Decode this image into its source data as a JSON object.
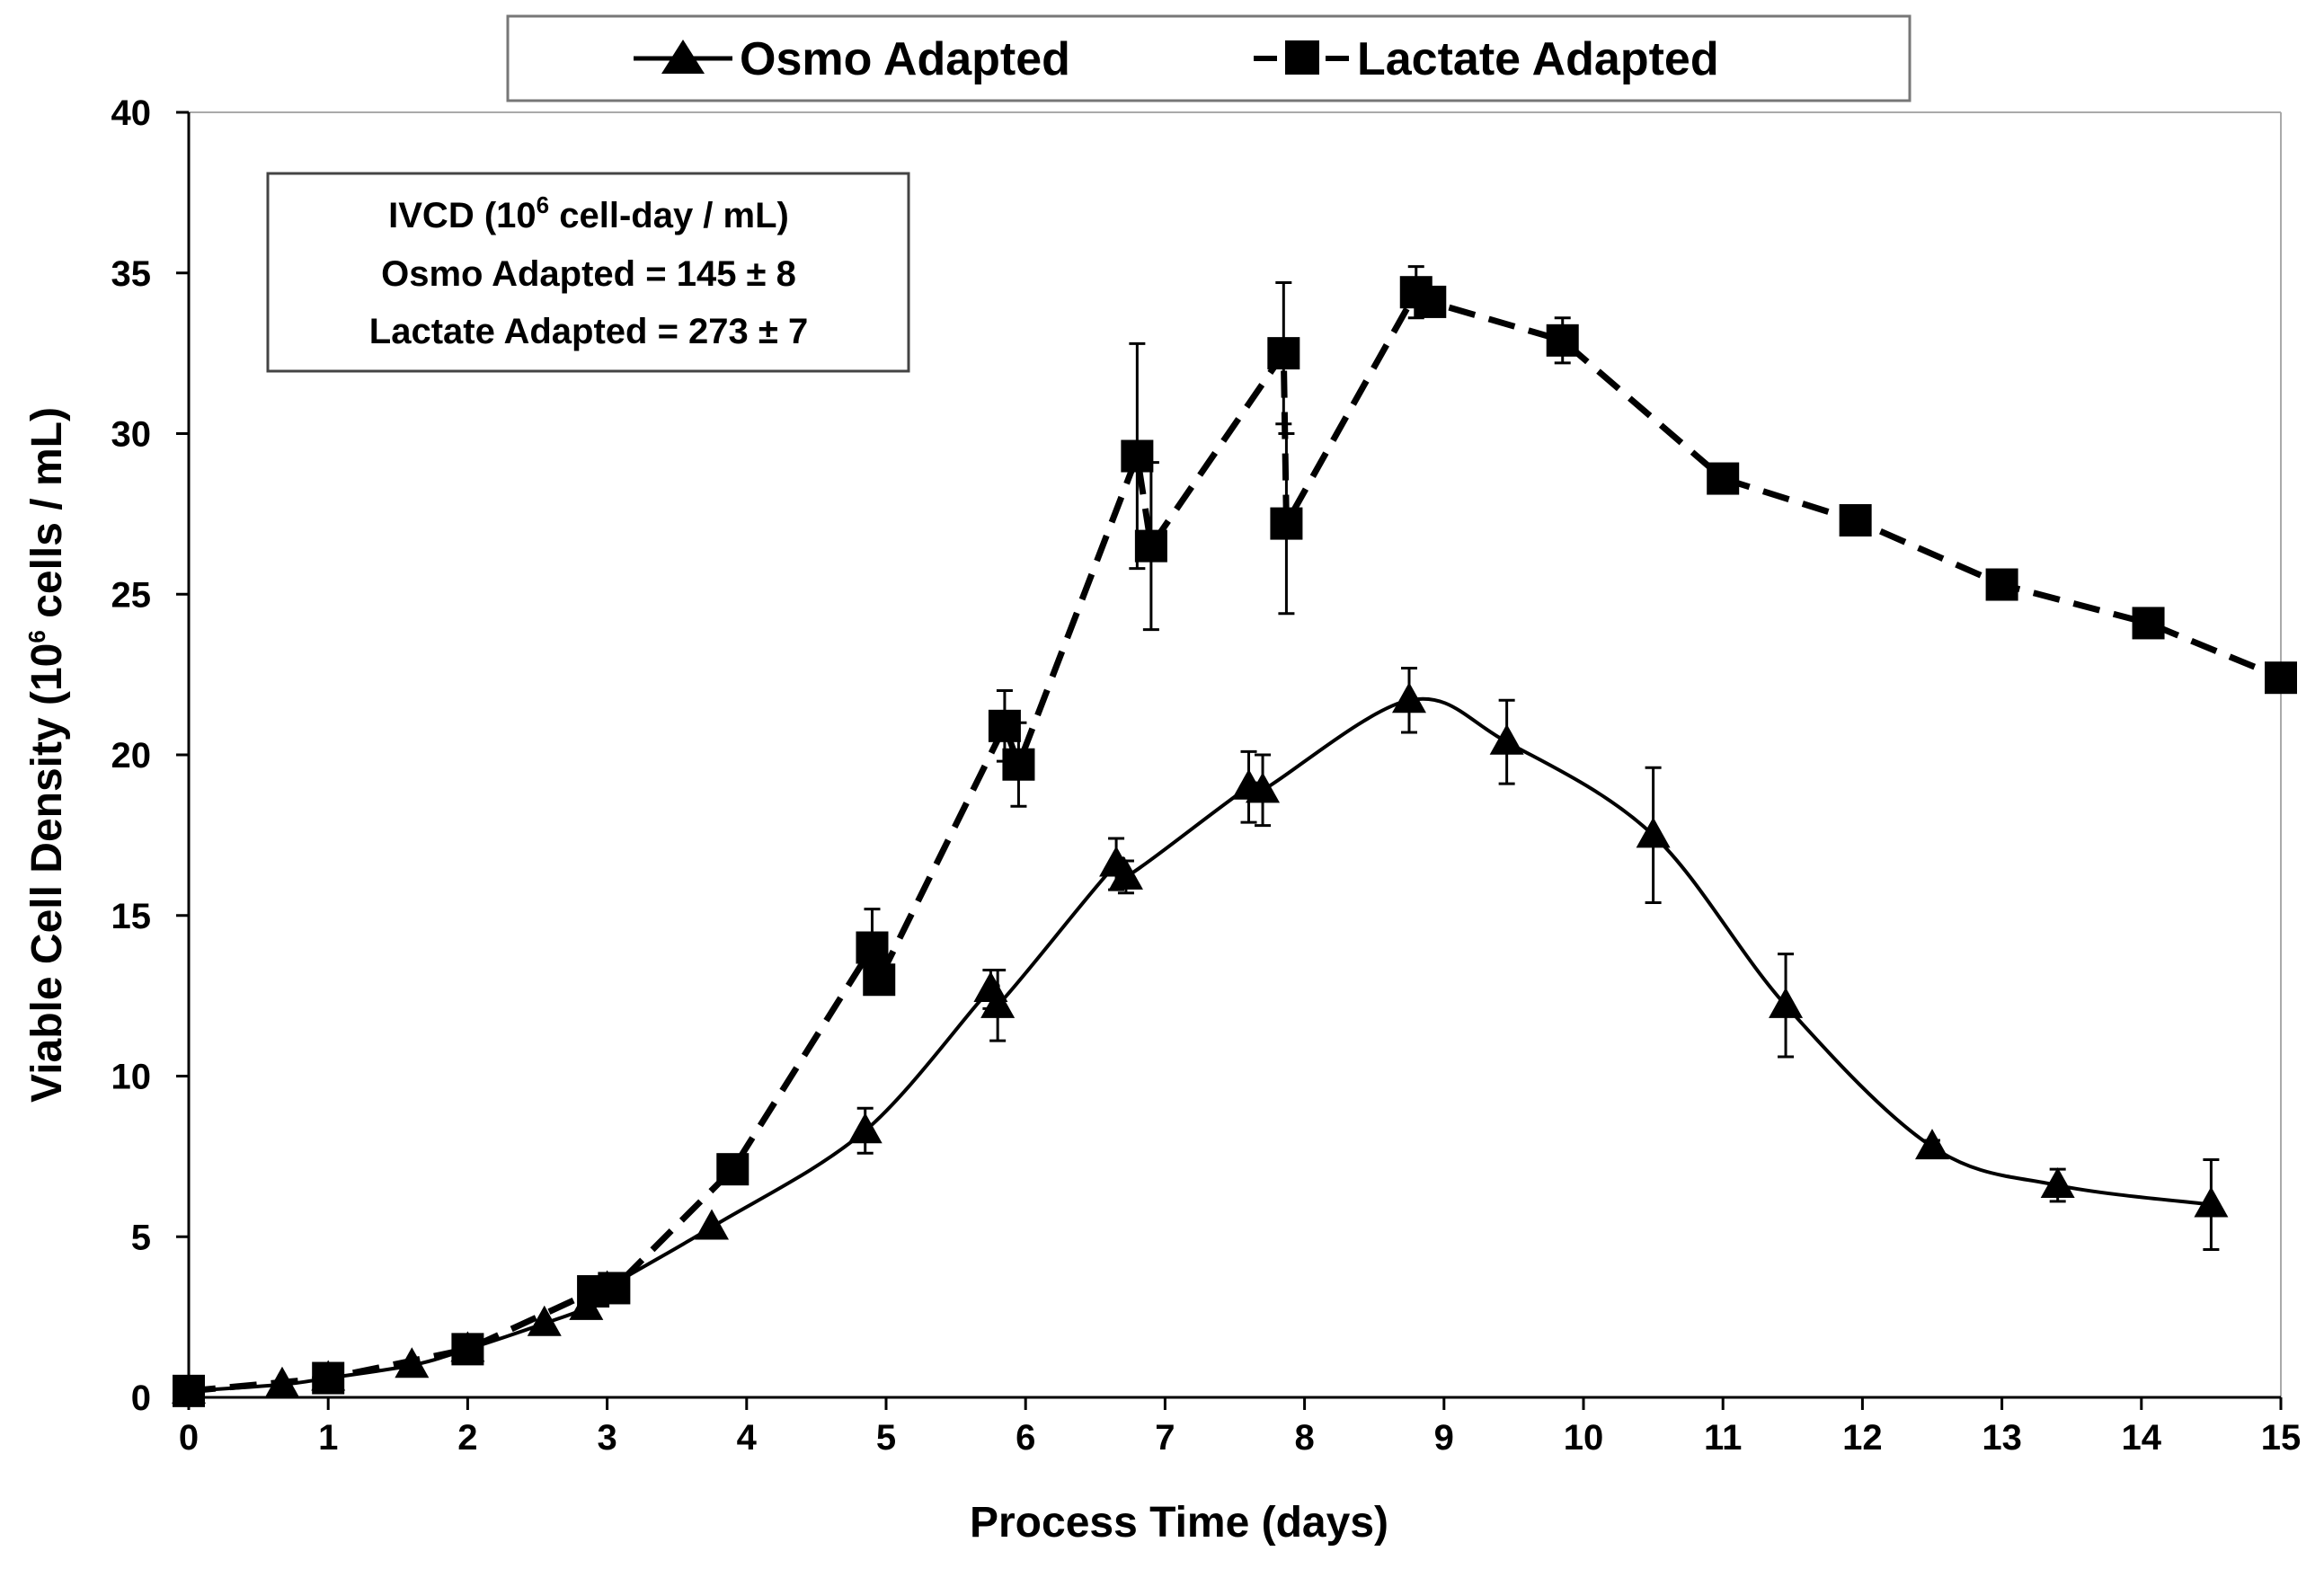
{
  "chart_data": {
    "type": "line",
    "xlabel": "Process Time (days)",
    "ylabel_main": "Viable Cell Density (10",
    "ylabel_sup": "6",
    "ylabel_tail": " cells / mL)",
    "xlim": [
      0,
      15
    ],
    "ylim": [
      0,
      40
    ],
    "x_ticks": [
      "0",
      "1",
      "2",
      "3",
      "4",
      "5",
      "6",
      "7",
      "8",
      "9",
      "10",
      "11",
      "12",
      "13",
      "14",
      "15"
    ],
    "y_ticks": [
      "0",
      "5",
      "10",
      "15",
      "20",
      "25",
      "30",
      "35",
      "40"
    ],
    "legend": [
      "Osmo Adapted",
      "Lactate Adapted"
    ],
    "annotation": {
      "line1_pre": "IVCD (10",
      "line1_sup": "6",
      "line1_post": " cell-day / mL)",
      "line2": "Osmo Adapted = 145 ± 8",
      "line3": "Lactate Adapted = 273 ± 7"
    },
    "series": [
      {
        "name": "Osmo Adapted",
        "marker": "triangle",
        "line": "solid",
        "points": [
          {
            "x": 0,
            "y": 0.2,
            "err": 0
          },
          {
            "x": 0.67,
            "y": 0.4,
            "err": 0
          },
          {
            "x": 1.0,
            "y": 0.6,
            "err": 0
          },
          {
            "x": 1.6,
            "y": 1.0,
            "err": 0
          },
          {
            "x": 2.0,
            "y": 1.5,
            "err": 0
          },
          {
            "x": 2.55,
            "y": 2.3,
            "err": 0
          },
          {
            "x": 2.85,
            "y": 2.8,
            "err": 0
          },
          {
            "x": 3.0,
            "y": 3.4,
            "err": 0
          },
          {
            "x": 3.75,
            "y": 5.3,
            "err": 0
          },
          {
            "x": 4.85,
            "y": 8.3,
            "err": 0.7
          },
          {
            "x": 5.75,
            "y": 12.7,
            "err": 0.6
          },
          {
            "x": 5.8,
            "y": 12.2,
            "err": 1.1
          },
          {
            "x": 6.65,
            "y": 16.6,
            "err": 0.8
          },
          {
            "x": 6.72,
            "y": 16.2,
            "err": 0.5
          },
          {
            "x": 7.6,
            "y": 19.0,
            "err": 1.1
          },
          {
            "x": 7.7,
            "y": 18.9,
            "err": 1.1
          },
          {
            "x": 8.75,
            "y": 21.7,
            "err": 1.0
          },
          {
            "x": 9.45,
            "y": 20.4,
            "err": 1.3
          },
          {
            "x": 10.5,
            "y": 17.5,
            "err": 2.1
          },
          {
            "x": 11.45,
            "y": 12.2,
            "err": 1.6
          },
          {
            "x": 12.5,
            "y": 7.8,
            "err": 0.2
          },
          {
            "x": 13.4,
            "y": 6.6,
            "err": 0.5
          },
          {
            "x": 14.5,
            "y": 6.0,
            "err": 1.4
          }
        ]
      },
      {
        "name": "Lactate Adapted",
        "marker": "square",
        "line": "dashed",
        "points": [
          {
            "x": 0,
            "y": 0.2,
            "err": 0
          },
          {
            "x": 1.0,
            "y": 0.6,
            "err": 0
          },
          {
            "x": 2.0,
            "y": 1.5,
            "err": 0
          },
          {
            "x": 2.9,
            "y": 3.3,
            "err": 0
          },
          {
            "x": 3.05,
            "y": 3.4,
            "err": 0
          },
          {
            "x": 3.9,
            "y": 7.1,
            "err": 0
          },
          {
            "x": 4.9,
            "y": 14.0,
            "err": 1.2
          },
          {
            "x": 4.95,
            "y": 13.0,
            "err": 0
          },
          {
            "x": 5.85,
            "y": 20.9,
            "err": 1.1
          },
          {
            "x": 5.95,
            "y": 19.7,
            "err": 1.3
          },
          {
            "x": 6.8,
            "y": 29.3,
            "err": 3.5
          },
          {
            "x": 6.9,
            "y": 26.5,
            "err": 2.6
          },
          {
            "x": 7.85,
            "y": 32.5,
            "err": 2.2
          },
          {
            "x": 7.87,
            "y": 27.2,
            "err": 2.8
          },
          {
            "x": 8.8,
            "y": 34.4,
            "err": 0.8
          },
          {
            "x": 8.9,
            "y": 34.1,
            "err": 0
          },
          {
            "x": 9.85,
            "y": 32.9,
            "err": 0.7
          },
          {
            "x": 11.0,
            "y": 28.6,
            "err": 0
          },
          {
            "x": 11.95,
            "y": 27.3,
            "err": 0
          },
          {
            "x": 13.0,
            "y": 25.3,
            "err": 0
          },
          {
            "x": 14.05,
            "y": 24.1,
            "err": 0
          },
          {
            "x": 15.0,
            "y": 22.4,
            "err": 0
          }
        ]
      }
    ]
  }
}
